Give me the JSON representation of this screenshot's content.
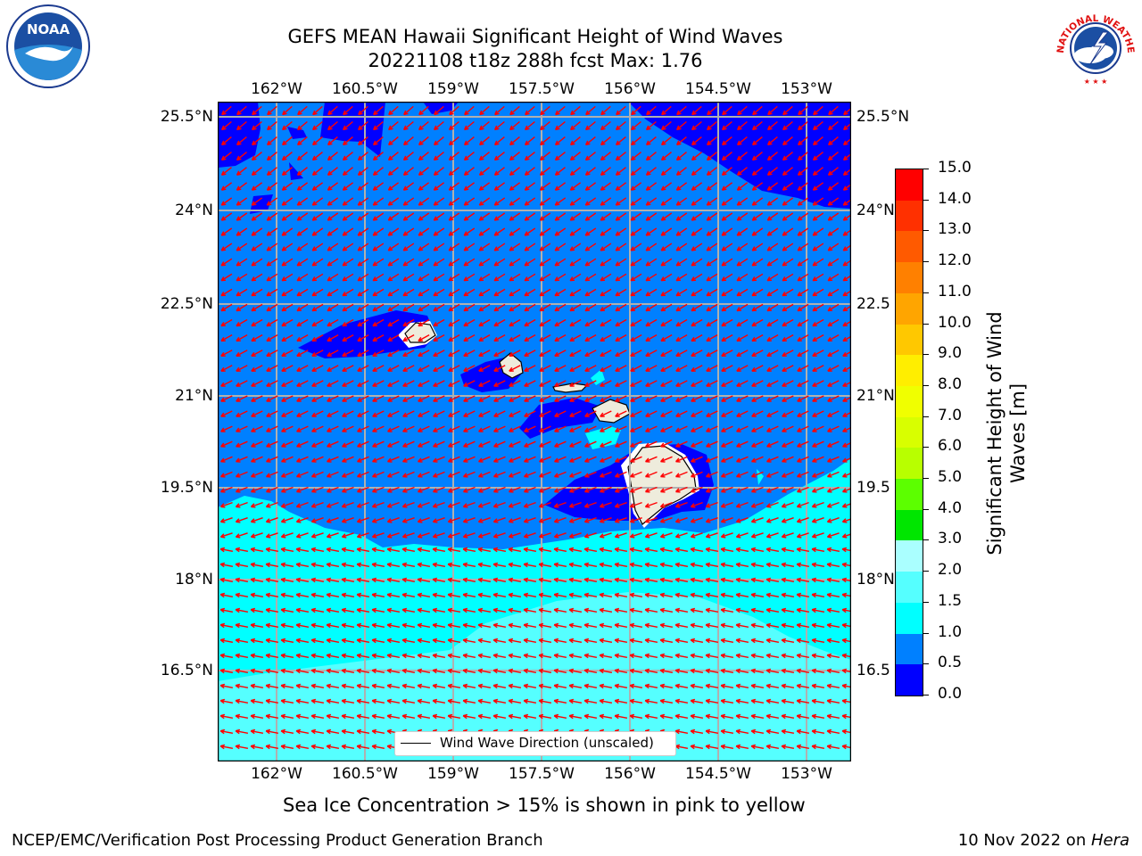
{
  "title": {
    "line1": "GEFS MEAN Hawaii Significant Height of Wind Waves",
    "line2": "20221108 t18z 288h fcst   Max: 1.76"
  },
  "logos": {
    "noaa_text": "NOAA",
    "nws_text": "NATIONAL WEATHER SERVICE"
  },
  "map": {
    "lon_ticks": [
      "162°W",
      "160.5°W",
      "159°W",
      "157.5°W",
      "156°W",
      "154.5°W",
      "153°W"
    ],
    "lat_ticks": [
      "25.5°N",
      "24°N",
      "22.5°N",
      "21°N",
      "19.5°N",
      "18°N",
      "16.5°N"
    ],
    "lat_ticks_right": [
      "25.5°N",
      "24°N",
      "22.5",
      "21°N",
      "19.5",
      "18°N",
      "16.5"
    ],
    "legend_label": "Wind Wave Direction (unscaled)"
  },
  "colorbar": {
    "label": "Significant Height of Wind Waves [m]",
    "ticks": [
      "15.0",
      "14.0",
      "13.0",
      "12.0",
      "11.0",
      "10.0",
      "9.0",
      "8.0",
      "7.0",
      "6.0",
      "5.0",
      "4.0",
      "3.0",
      "2.0",
      "1.5",
      "1.0",
      "0.5",
      "0.0"
    ],
    "colors": [
      "#ff0000",
      "#ff3000",
      "#ff5a00",
      "#ff8000",
      "#ffa500",
      "#ffc800",
      "#ffee00",
      "#f0ff00",
      "#d8ff00",
      "#b8ff00",
      "#5cff00",
      "#00e600",
      "#00ff00",
      "#44ff88",
      "#aaffff",
      "#55ffff",
      "#00ffff",
      "#0080ff",
      "#0000ff"
    ]
  },
  "note": "Sea Ice Concentration > 15% is shown in pink to yellow",
  "footer": {
    "left": "NCEP/EMC/Verification Post Processing Product Generation Branch",
    "date": "10 Nov 2022 on ",
    "host": "Hera"
  }
}
